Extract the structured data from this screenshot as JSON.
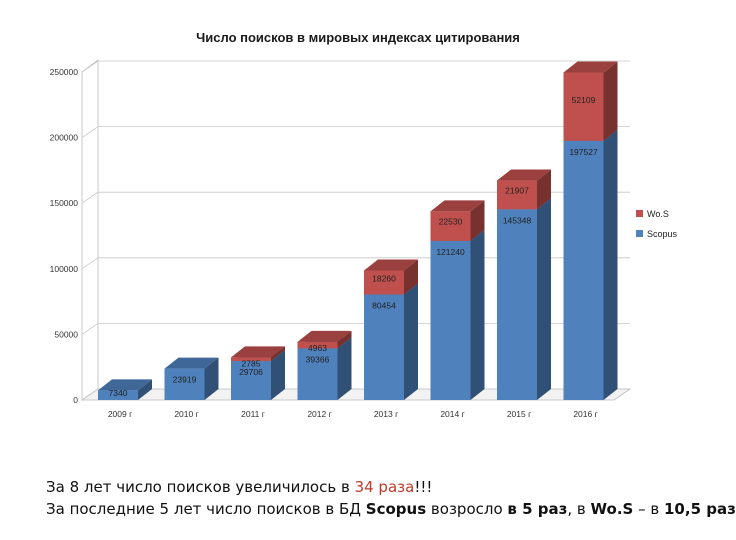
{
  "chart_data": {
    "type": "bar",
    "stacked": true,
    "three_d": true,
    "title": "Число поисков в мировых индексах цитирования",
    "categories": [
      "2009 г",
      "2010 г",
      "2011 г",
      "2012 г",
      "2013 г",
      "2014 г",
      "2015 г",
      "2016 г"
    ],
    "series": [
      {
        "name": "Scopus",
        "color": "#4f81bd",
        "values": [
          7340,
          23919,
          29706,
          39366,
          80454,
          121240,
          145348,
          197527
        ],
        "labels": [
          "7340",
          "23919",
          "29706",
          "39366",
          "80454",
          "121240",
          "145348",
          "197527"
        ]
      },
      {
        "name": "WoS",
        "color": "#c0504d",
        "values": [
          0,
          0,
          2785,
          4963,
          18260,
          22530,
          21907,
          52109
        ],
        "labels": [
          "",
          "",
          "2785",
          "4963",
          "18260",
          "22530",
          "21907",
          "52109"
        ]
      }
    ],
    "ylim": [
      0,
      250000
    ],
    "yticks": [
      0,
      50000,
      100000,
      150000,
      200000,
      250000
    ],
    "ytick_labels": [
      "0",
      "50000",
      "100000",
      "150000",
      "200000",
      "250000"
    ],
    "grid": true,
    "legend_position": "right",
    "legend_items": [
      "Wo.S",
      "Scopus"
    ]
  },
  "caption": {
    "line1_pre": "За 8 лет число поисков увеличилось в ",
    "line1_hl": "34 раза",
    "line1_post": "!!!",
    "line2_a": "За последние 5 лет число поисков в БД ",
    "line2_scopus": "Scopus",
    "line2_b": " возросло ",
    "line2_c": "в 5 раз",
    "line2_d": ", в ",
    "line2_wos": "Wo.S",
    "line2_e": " – в ",
    "line2_f": "10,5 раз"
  }
}
